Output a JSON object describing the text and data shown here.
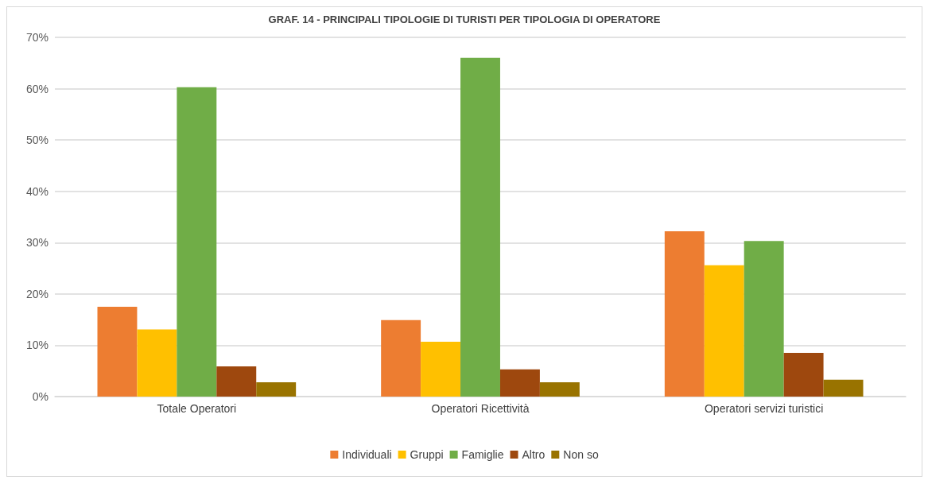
{
  "chart_data": {
    "type": "bar",
    "title": "GRAF. 14 - PRINCIPALI TIPOLOGIE DI TURISTI PER TIPOLOGIA DI OPERATORE",
    "categories": [
      "Totale Operatori",
      "Operatori Ricettività",
      "Operatori servizi turistici"
    ],
    "series": [
      {
        "name": "Individuali",
        "color": "#ed7d31",
        "values": [
          17.5,
          14.9,
          32.2
        ]
      },
      {
        "name": "Gruppi",
        "color": "#ffc000",
        "values": [
          13.1,
          10.7,
          25.6
        ]
      },
      {
        "name": "Famiglie",
        "color": "#70ad47",
        "values": [
          60.3,
          66.0,
          30.3
        ]
      },
      {
        "name": "Altro",
        "color": "#9e480e",
        "values": [
          5.9,
          5.3,
          8.5
        ]
      },
      {
        "name": "Non so",
        "color": "#997300",
        "values": [
          2.8,
          2.8,
          3.3
        ]
      }
    ],
    "ylim": [
      0,
      70
    ],
    "yticks": [
      {
        "value": 0,
        "label": "0%"
      },
      {
        "value": 10,
        "label": "10%"
      },
      {
        "value": 20,
        "label": "20%"
      },
      {
        "value": 30,
        "label": "30%"
      },
      {
        "value": 40,
        "label": "40%"
      },
      {
        "value": 50,
        "label": "50%"
      },
      {
        "value": 60,
        "label": "60%"
      },
      {
        "value": 70,
        "label": "70%"
      }
    ],
    "grid": "y",
    "legend": "bottom"
  }
}
